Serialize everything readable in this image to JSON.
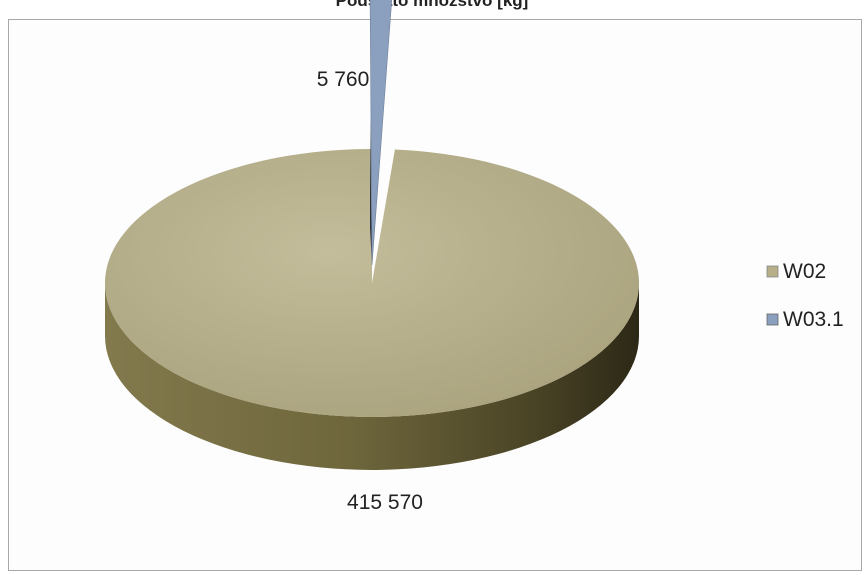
{
  "chart_data": {
    "type": "pie",
    "title": "Podstato množstvo [kg]",
    "categories": [
      "W02",
      "W03.1"
    ],
    "values": [
      415570,
      5760
    ],
    "value_labels": [
      "415 570",
      "5 760"
    ],
    "legend": {
      "placement": "right",
      "entries": [
        "W02",
        "W03.1"
      ]
    },
    "colors": {
      "W02": "#b6af8a",
      "W03.1": "#8ba0bf"
    }
  }
}
